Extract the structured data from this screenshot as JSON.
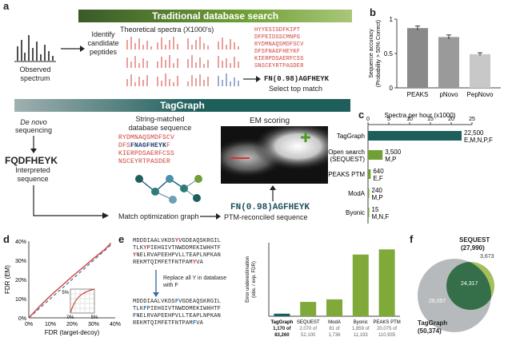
{
  "panel_labels": {
    "a": "a",
    "b": "b",
    "c": "c",
    "d": "d",
    "e": "e",
    "f": "f"
  },
  "panel_a": {
    "banner_top": "Traditional database search",
    "banner_mid": "TagGraph",
    "observed_spectrum": "Observed spectrum",
    "identify_candidates": "Identify candidate peptides",
    "theoretical_spectra": "Theoretical spectra (X1000's)",
    "db_sequences": [
      "HYYESISDFKIPT",
      "DFPEIDSSCMNPG",
      "RYDMNAQSMDFSCV",
      "DFSFNAGFHEYKF",
      "KIERPDSAERFCSS",
      "SNSCEYRTPASDER"
    ],
    "top_match": "FN(0.98)AGFHEYK",
    "select_top_match": "Select top match",
    "de_novo": "De novo",
    "sequencing": "sequencing",
    "interpreted_peptide": "FQDFHEYK",
    "interpreted_sequence": "Interpreted sequence",
    "string_matched": "String-matched database sequence",
    "sm_lines": [
      {
        "pre": "RYDMNAQSMDFSCV",
        "hl": "",
        "post": ""
      },
      {
        "pre": "DFS",
        "hl": "FNAGFHEYK",
        "post": "F"
      },
      {
        "pre": "KIERPDSAERFCSS",
        "hl": "",
        "post": ""
      },
      {
        "pre": "NSCEYRTPASDER",
        "hl": "",
        "post": ""
      }
    ],
    "em_scoring": "EM scoring",
    "ptm_peptide": "FN(0.98)AGFHEYK",
    "match_graph": "Match optimization graph",
    "ptm_reconciled": "PTM-reconciled sequence"
  },
  "panel_b_chart": {
    "type": "bar",
    "categories": [
      "PEAKS",
      "pNovo",
      "PepNovo"
    ],
    "values": [
      0.87,
      0.74,
      0.49
    ],
    "errors": [
      0.03,
      0.03,
      0.02
    ],
    "ylim": [
      0,
      1
    ],
    "yticks": [
      "0",
      "0.5",
      "1"
    ],
    "ylabel": "Sequence accuracy (Probability > 50% Correct)",
    "colors": [
      "#8a8a8a",
      "#9a9a9a",
      "#c8c8c8"
    ]
  },
  "panel_c_chart": {
    "type": "bar",
    "title": "Spectra per hour (x1000)",
    "xticks": [
      "0",
      "5",
      "10",
      "15",
      "20",
      "25"
    ],
    "xlim": [
      0,
      25
    ],
    "categories": [
      "TagGraph",
      "Open search (SEQUEST)",
      "PEAKS PTM",
      "ModA",
      "Byonic"
    ],
    "values": [
      22.5,
      3.5,
      0.64,
      0.24,
      0.015
    ],
    "value_labels": [
      "22,500",
      "3,500",
      "640",
      "240",
      "15"
    ],
    "mods": [
      "E,M,N,P,F",
      "M,P",
      "E,F",
      "M,P",
      "M,N,F"
    ],
    "colors": [
      "#1e5f5c",
      "#6f9f35",
      "#6f9f35",
      "#6f9f35",
      "#6f9f35"
    ]
  },
  "panel_d_chart": {
    "type": "line",
    "xlabel": "FDR (target-decoy)",
    "ylabel": "FDR (EM)",
    "xticks": [
      "0%",
      "10%",
      "20%",
      "30%",
      "40%"
    ],
    "yticks": [
      "0%",
      "10%",
      "20%",
      "30%",
      "40%"
    ],
    "xlim": [
      0,
      0.4
    ],
    "ylim": [
      0,
      0.4
    ],
    "series": [
      {
        "name": "TagGraph",
        "x": [
          0,
          0.05,
          0.1,
          0.15,
          0.2,
          0.25,
          0.3,
          0.35,
          0.38
        ],
        "y": [
          0,
          0.06,
          0.115,
          0.165,
          0.215,
          0.262,
          0.31,
          0.355,
          0.39
        ]
      },
      {
        "name": "identity",
        "x": [
          0,
          0.38
        ],
        "y": [
          0,
          0.38
        ]
      }
    ],
    "inset": {
      "tick_max": "5%",
      "tick_min": "0%"
    }
  },
  "panel_e": {
    "seq_before": [
      {
        "a": "MDDDIAALVKDS",
        "r": "Y",
        "b": "VGDEAQSKRGIL"
      },
      {
        "a": "TLK",
        "r": "Y",
        "b": "PIEHGIVTNWDDMEKIWHHTF"
      },
      {
        "a": "",
        "r": "Y",
        "b": "NELRVAPEEHPVLLTEAPLNPKAN"
      },
      {
        "a": "REKMTQIMFETFNTPAM",
        "r": "Y",
        "b": "VA"
      }
    ],
    "replace_note": "Replace all Y in database with F",
    "seq_after": [
      {
        "a": "MDDDIAALVKDS",
        "r": "F",
        "b": "VGDEAQSKRGIL"
      },
      {
        "a": "TLK",
        "r": "F",
        "b": "PIEHGIVTNWDDMEKIWHHTF"
      },
      {
        "a": "",
        "r": "F",
        "b": "NELRVAPEEHPVLLTEAPLNPKAN"
      },
      {
        "a": "REKMTQIMFETFNTPAM",
        "r": "F",
        "b": "VA"
      }
    ]
  },
  "panel_e_chart": {
    "type": "bar",
    "ylabel": "Error underestimation (obs. / exp. FDR)",
    "ylim": [
      0,
      20
    ],
    "categories": [
      "TagGraph",
      "SEQUEST",
      "ModA",
      "Byonic",
      "PEAKS PTM"
    ],
    "values": [
      0.7,
      3.9,
      4.6,
      16.8,
      18.2
    ],
    "sub1": [
      "1,170 of",
      "2,070 of",
      "81 of",
      "1,859 of",
      "20,075 of"
    ],
    "sub2": [
      "83,260",
      "52,100",
      "1,736",
      "11,193",
      "110,935"
    ],
    "colors": [
      "#1e5f5c",
      "#7faa3a",
      "#7faa3a",
      "#7faa3a",
      "#7faa3a"
    ]
  },
  "panel_f": {
    "sequest_label": "SEQUEST",
    "sequest_total": "(27,990)",
    "sequest_only": "3,673",
    "overlap": "24,317",
    "taggraph_only": "26,057",
    "taggraph_label": "TagGraph",
    "taggraph_total": "(50,374)"
  }
}
